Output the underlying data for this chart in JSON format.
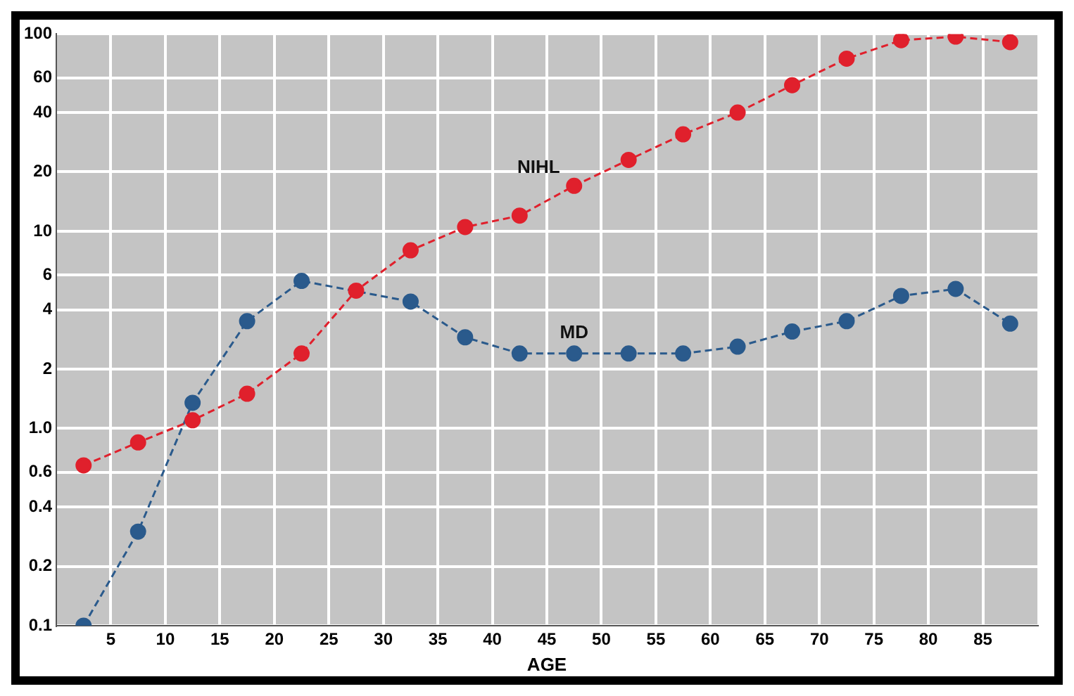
{
  "chart_data": {
    "type": "line",
    "xlabel": "AGE",
    "x": [
      2.5,
      7.5,
      12.5,
      17.5,
      22.5,
      27.5,
      32.5,
      37.5,
      42.5,
      47.5,
      52.5,
      57.5,
      62.5,
      67.5,
      72.5,
      77.5,
      82.5,
      87.5
    ],
    "series": [
      {
        "name": "NIHL",
        "color": "#e0202c",
        "values": [
          0.65,
          0.85,
          1.1,
          1.5,
          2.4,
          5.0,
          8.0,
          10.5,
          12,
          17,
          23,
          31,
          40,
          55,
          75,
          93,
          97,
          91
        ]
      },
      {
        "name": "MD",
        "color": "#2a5a8c",
        "values": [
          0.1,
          0.3,
          1.35,
          3.5,
          5.6,
          null,
          4.4,
          2.9,
          2.4,
          2.4,
          2.4,
          2.4,
          2.6,
          3.1,
          3.5,
          4.7,
          5.1,
          3.4
        ]
      }
    ],
    "log": "y",
    "xlim": [
      0,
      90
    ],
    "xticks": [
      5,
      10,
      15,
      20,
      25,
      30,
      35,
      40,
      45,
      50,
      55,
      60,
      65,
      70,
      75,
      80,
      85
    ],
    "ylim": [
      0.1,
      100
    ],
    "yticks": [
      0.1,
      0.2,
      0.4,
      0.6,
      {
        "value": 1,
        "label": "1.0"
      },
      2,
      4,
      6,
      10,
      20,
      40,
      60,
      100
    ],
    "grid": true,
    "legend": false,
    "marker": "circle",
    "line_style": "dashed"
  }
}
